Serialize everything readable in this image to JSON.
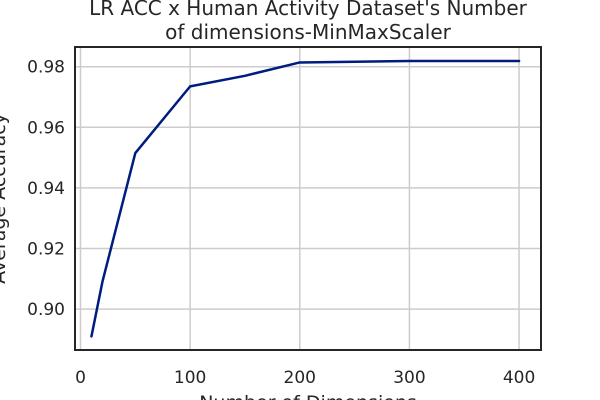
{
  "chart_data": {
    "type": "line",
    "title_lines": [
      "LR ACC x Human Activity Dataset's Number",
      "of dimensions-MinMaxScaler"
    ],
    "xlabel": "Number of Dimensions",
    "ylabel": "Average Accuracy",
    "xlim": [
      -5,
      420
    ],
    "ylim": [
      0.8865,
      0.9865
    ],
    "xticks": [
      0,
      100,
      200,
      300,
      400
    ],
    "yticks": [
      0.9,
      0.92,
      0.94,
      0.96,
      0.98
    ],
    "grid": true,
    "series": [
      {
        "color": "#001c7f",
        "x": [
          10,
          20,
          50,
          100,
          150,
          200,
          300,
          400
        ],
        "y": [
          0.891,
          0.909,
          0.9515,
          0.9735,
          0.977,
          0.9814,
          0.9819,
          0.9819
        ]
      }
    ]
  }
}
